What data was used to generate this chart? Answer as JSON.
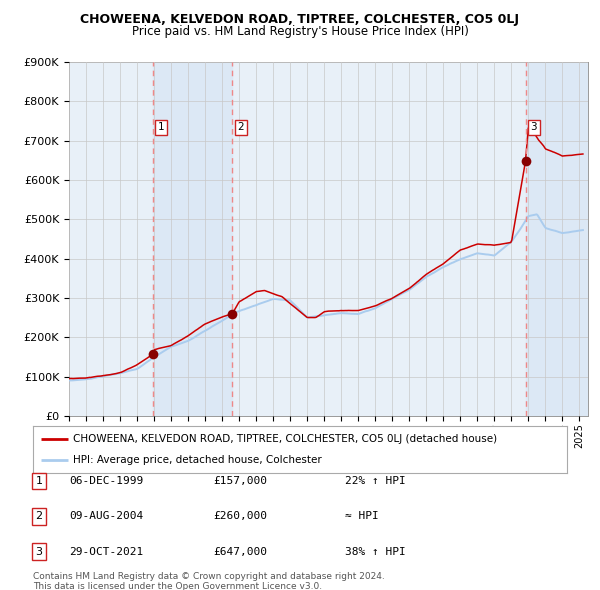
{
  "title": "CHOWEENA, KELVEDON ROAD, TIPTREE, COLCHESTER, CO5 0LJ",
  "subtitle": "Price paid vs. HM Land Registry's House Price Index (HPI)",
  "ylim": [
    0,
    900000
  ],
  "yticks": [
    0,
    100000,
    200000,
    300000,
    400000,
    500000,
    600000,
    700000,
    800000,
    900000
  ],
  "ytick_labels": [
    "£0",
    "£100K",
    "£200K",
    "£300K",
    "£400K",
    "£500K",
    "£600K",
    "£700K",
    "£800K",
    "£900K"
  ],
  "background_color": "#ffffff",
  "plot_bg_color": "#e8f0f8",
  "grid_color": "#c8c8c8",
  "hpi_line_color": "#aaccee",
  "price_line_color": "#cc0000",
  "sale_marker_color": "#880000",
  "dashed_line_color": "#ee8888",
  "shade_color": "#dce8f5",
  "sale_points": [
    {
      "date_x": 1999.92,
      "price": 157000,
      "label": "1"
    },
    {
      "date_x": 2004.6,
      "price": 260000,
      "label": "2"
    },
    {
      "date_x": 2021.83,
      "price": 647000,
      "label": "3"
    }
  ],
  "legend_line1": "CHOWEENA, KELVEDON ROAD, TIPTREE, COLCHESTER, CO5 0LJ (detached house)",
  "legend_line2": "HPI: Average price, detached house, Colchester",
  "table_rows": [
    [
      "1",
      "06-DEC-1999",
      "£157,000",
      "22% ↑ HPI"
    ],
    [
      "2",
      "09-AUG-2004",
      "£260,000",
      "≈ HPI"
    ],
    [
      "3",
      "29-OCT-2021",
      "£647,000",
      "38% ↑ HPI"
    ]
  ],
  "footnote1": "Contains HM Land Registry data © Crown copyright and database right 2024.",
  "footnote2": "This data is licensed under the Open Government Licence v3.0.",
  "xmin": 1995.0,
  "xmax": 2025.5,
  "hpi_key_years": [
    1995,
    1996,
    1997,
    1998,
    1999,
    2000,
    2001,
    2002,
    2003,
    2004,
    2005,
    2006,
    2007,
    2008,
    2009,
    2010,
    2011,
    2012,
    2013,
    2014,
    2015,
    2016,
    2017,
    2018,
    2019,
    2020,
    2021,
    2021.5,
    2022,
    2022.5,
    2023,
    2024,
    2025.2
  ],
  "hpi_key_vals": [
    90000,
    93000,
    100000,
    108000,
    118000,
    148000,
    175000,
    190000,
    215000,
    240000,
    265000,
    280000,
    295000,
    292000,
    248000,
    255000,
    260000,
    258000,
    272000,
    295000,
    318000,
    350000,
    375000,
    395000,
    410000,
    405000,
    440000,
    470000,
    505000,
    510000,
    475000,
    462000,
    470000
  ],
  "price_key_years": [
    1995,
    1996,
    1997,
    1998,
    1999,
    1999.92,
    2000,
    2001,
    2002,
    2003,
    2004,
    2004.6,
    2005,
    2006,
    2006.5,
    2007,
    2007.5,
    2008,
    2009,
    2009.5,
    2010,
    2011,
    2012,
    2013,
    2014,
    2015,
    2016,
    2017,
    2018,
    2019,
    2020,
    2021,
    2021.83,
    2022.0,
    2022.3,
    2022.6,
    2022.9,
    2023,
    2023.5,
    2024,
    2025.2
  ],
  "price_key_vals": [
    95000,
    97000,
    103000,
    110000,
    130000,
    157000,
    168000,
    180000,
    205000,
    235000,
    252000,
    260000,
    290000,
    315000,
    318000,
    310000,
    303000,
    285000,
    250000,
    250000,
    265000,
    268000,
    268000,
    280000,
    298000,
    322000,
    358000,
    385000,
    420000,
    435000,
    432000,
    440000,
    647000,
    735000,
    720000,
    700000,
    685000,
    678000,
    670000,
    660000,
    665000
  ]
}
